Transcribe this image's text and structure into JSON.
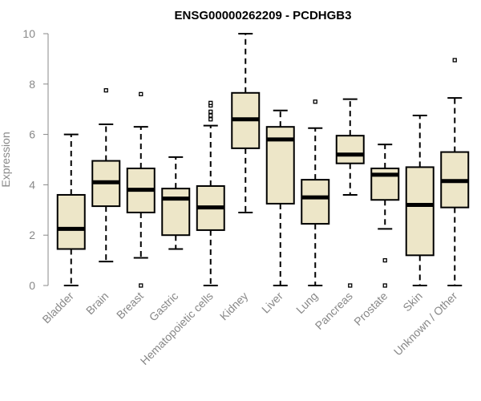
{
  "chart_data": {
    "type": "boxplot",
    "title": "ENSG00000262209 - PCDHGB3",
    "xlabel": "",
    "ylabel": "Expression",
    "ylim": [
      0,
      10
    ],
    "yticks": [
      0,
      2,
      4,
      6,
      8,
      10
    ],
    "box_color": "#ede6c8",
    "categories": [
      "Bladder",
      "Brain",
      "Breast",
      "Gastric",
      "Hematopoietic cells",
      "Kidney",
      "Liver",
      "Lung",
      "Pancreas",
      "Prostate",
      "Skin",
      "Unknown / Other"
    ],
    "series": [
      {
        "name": "Bladder",
        "min": 0,
        "q1": 1.45,
        "median": 2.25,
        "q3": 3.6,
        "max": 6.0,
        "outliers": []
      },
      {
        "name": "Brain",
        "min": 0.95,
        "q1": 3.15,
        "median": 4.1,
        "q3": 4.95,
        "max": 6.4,
        "outliers": [
          7.75
        ]
      },
      {
        "name": "Breast",
        "min": 1.1,
        "q1": 2.9,
        "median": 3.8,
        "q3": 4.65,
        "max": 6.3,
        "outliers": [
          7.6,
          0
        ]
      },
      {
        "name": "Gastric",
        "min": 1.45,
        "q1": 2.0,
        "median": 3.45,
        "q3": 3.85,
        "max": 5.1,
        "outliers": []
      },
      {
        "name": "Hematopoietic cells",
        "min": 0,
        "q1": 2.2,
        "median": 3.1,
        "q3": 3.95,
        "max": 6.35,
        "outliers": [
          6.6,
          6.75,
          6.9,
          7.15,
          7.25
        ]
      },
      {
        "name": "Kidney",
        "min": 2.9,
        "q1": 5.45,
        "median": 6.6,
        "q3": 7.65,
        "max": 10.0,
        "outliers": []
      },
      {
        "name": "Liver",
        "min": 0,
        "q1": 3.25,
        "median": 5.8,
        "q3": 6.3,
        "max": 6.95,
        "outliers": []
      },
      {
        "name": "Lung",
        "min": 0,
        "q1": 2.45,
        "median": 3.5,
        "q3": 4.2,
        "max": 6.25,
        "outliers": [
          7.3
        ]
      },
      {
        "name": "Pancreas",
        "min": 3.6,
        "q1": 4.85,
        "median": 5.2,
        "q3": 5.95,
        "max": 7.4,
        "outliers": [
          0
        ]
      },
      {
        "name": "Prostate",
        "min": 2.25,
        "q1": 3.4,
        "median": 4.4,
        "q3": 4.65,
        "max": 5.6,
        "outliers": [
          1.0,
          0
        ]
      },
      {
        "name": "Skin",
        "min": 0,
        "q1": 1.2,
        "median": 3.2,
        "q3": 4.7,
        "max": 6.75,
        "outliers": []
      },
      {
        "name": "Unknown / Other",
        "min": 0,
        "q1": 3.1,
        "median": 4.15,
        "q3": 5.3,
        "max": 7.45,
        "outliers": [
          8.95
        ]
      }
    ]
  }
}
